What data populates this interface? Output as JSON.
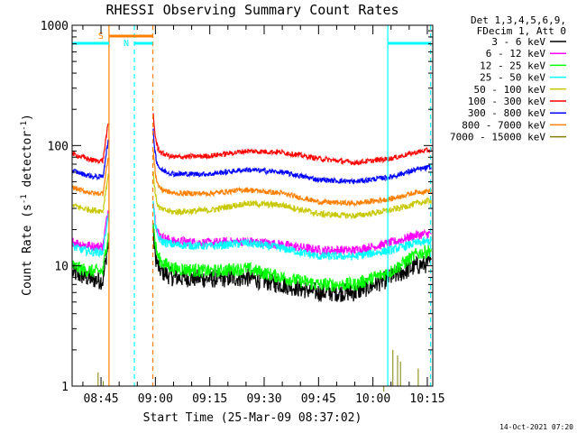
{
  "chart_data": {
    "type": "line",
    "title": "RHESSI Observing Summary Count Rates",
    "xlabel": "Start Time (25-Mar-09 08:37:02)",
    "ylabel_main": "Count Rate (s",
    "ylabel_sup1": "-1",
    "ylabel_mid": " detector",
    "ylabel_sup2": "-1",
    "ylabel_end": ")",
    "x_ticks": [
      "08:45",
      "09:00",
      "09:15",
      "09:30",
      "09:45",
      "10:00",
      "10:15"
    ],
    "x_tick_minutes": [
      525,
      540,
      555,
      570,
      585,
      600,
      615
    ],
    "xlim_minutes": [
      517.03,
      616.5
    ],
    "yscale": "log",
    "ylim": [
      1,
      1000
    ],
    "y_ticks": [
      "1",
      "10",
      "100",
      "1000"
    ],
    "legend_header": [
      "Det 1,3,4,5,6,9,",
      "FDecim 1, Att 0"
    ],
    "legend_position": "top-right, outside plot",
    "gaps_minutes": [
      [
        527.2,
        539.3
      ]
    ],
    "series": [
      {
        "name": "3 - 6 keV",
        "color": "#000000",
        "t": [
          517,
          520,
          523,
          526,
          540,
          545,
          555,
          565,
          575,
          585,
          595,
          605,
          612,
          616
        ],
        "v": [
          8.8,
          8.2,
          7.7,
          7.5,
          9.5,
          8.0,
          7.8,
          8.0,
          7.0,
          6.0,
          6.0,
          8.0,
          10.0,
          10.5
        ]
      },
      {
        "name": "6 - 12 keV",
        "color": "#ff00ff",
        "t": [
          517,
          520,
          523,
          526,
          540,
          545,
          555,
          565,
          575,
          585,
          595,
          605,
          612,
          616
        ],
        "v": [
          16,
          15,
          14.5,
          14.5,
          18,
          16,
          15.5,
          16,
          15,
          13.5,
          13.5,
          15.5,
          18,
          18.5
        ]
      },
      {
        "name": "12 - 25 keV",
        "color": "#00ff00",
        "t": [
          517,
          520,
          523,
          526,
          540,
          545,
          555,
          565,
          575,
          585,
          595,
          605,
          612,
          616
        ],
        "v": [
          10,
          9.3,
          9.0,
          9.0,
          11.5,
          9.5,
          9.0,
          9.5,
          8.0,
          7.0,
          7.0,
          9.0,
          12.5,
          13.5
        ]
      },
      {
        "name": "25 - 50 keV",
        "color": "#00ffff",
        "t": [
          517,
          520,
          523,
          526,
          540,
          545,
          555,
          565,
          575,
          585,
          595,
          605,
          612,
          616
        ],
        "v": [
          14.5,
          13.5,
          13,
          13,
          16.5,
          15,
          14.5,
          15.5,
          14,
          12,
          12,
          13.5,
          15.5,
          16
        ]
      },
      {
        "name": "50 - 100 keV",
        "color": "#c8c800",
        "t": [
          517,
          520,
          523,
          526,
          540,
          545,
          555,
          565,
          575,
          585,
          595,
          605,
          612,
          616
        ],
        "v": [
          32,
          30,
          29,
          28.5,
          30,
          28,
          29,
          33,
          32,
          27,
          26,
          29,
          33,
          35
        ]
      },
      {
        "name": "100 - 300 keV",
        "color": "#ff0000",
        "t": [
          517,
          520,
          523,
          526,
          540,
          545,
          555,
          565,
          575,
          585,
          595,
          605,
          612,
          616
        ],
        "v": [
          85,
          80,
          75,
          75,
          90,
          80,
          82,
          90,
          88,
          78,
          72,
          78,
          88,
          92
        ]
      },
      {
        "name": "300 - 800 keV",
        "color": "#0000ff",
        "t": [
          517,
          520,
          523,
          526,
          540,
          545,
          555,
          565,
          575,
          585,
          595,
          605,
          612,
          616
        ],
        "v": [
          62,
          58,
          55,
          55,
          65,
          58,
          58,
          63,
          60,
          52,
          50,
          55,
          63,
          66
        ]
      },
      {
        "name": "800 - 7000 keV",
        "color": "#ff8000",
        "t": [
          517,
          520,
          523,
          526,
          540,
          545,
          555,
          565,
          575,
          585,
          595,
          605,
          612,
          616
        ],
        "v": [
          45,
          42,
          40,
          40,
          45,
          40,
          40,
          43,
          40,
          34,
          33,
          36,
          41,
          42
        ]
      },
      {
        "name": "7000 - 15000 keV",
        "color": "#808000",
        "t": [],
        "v": []
      }
    ],
    "obs_bars": [
      {
        "label": "S",
        "color": "#ff8000",
        "t0": 527.2,
        "t1": 539.3
      },
      {
        "label": "N",
        "color": "#00ffff",
        "t0": 534.2,
        "t1": 539.3
      },
      {
        "label": "",
        "color": "#00ffff",
        "t0": 517.03,
        "t1": 527.2
      },
      {
        "label": "",
        "color": "#00ffff",
        "t0": 604.1,
        "t1": 615.9
      }
    ],
    "vlines": [
      {
        "t": 527.2,
        "color": "#ff8000",
        "style": "solid"
      },
      {
        "t": 539.3,
        "color": "#ff8000",
        "style": "dashed"
      },
      {
        "t": 534.2,
        "color": "#00ffff",
        "style": "dashed"
      },
      {
        "t": 604.1,
        "color": "#00ffff",
        "style": "solid"
      },
      {
        "t": 615.9,
        "color": "#00ffff",
        "style": "dashed"
      }
    ],
    "footer_stamp": "14-Oct-2021 07:20"
  }
}
